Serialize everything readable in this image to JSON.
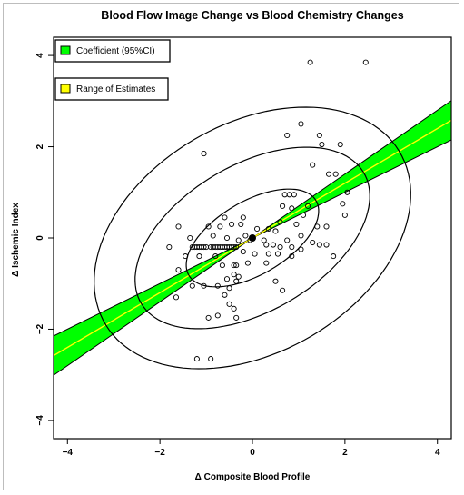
{
  "chart_data": {
    "type": "scatter",
    "title": "Blood Flow Image Change vs Blood Chemistry Changes",
    "xlabel": "Δ Composite Blood Profile",
    "ylabel": "Δ Ischemic Index",
    "xlim": [
      -4.3,
      4.3
    ],
    "ylim": [
      -4.4,
      4.4
    ],
    "xticks": [
      -4,
      -2,
      0,
      2,
      4
    ],
    "yticks": [
      -4,
      -2,
      0,
      2,
      4
    ],
    "legend": [
      {
        "label": "Coefficient (95%CI)",
        "color": "#00ff00"
      },
      {
        "label": "Range of Estimates",
        "color": "#ffff00"
      }
    ],
    "legend_position": "top-left",
    "grid": false,
    "center_point": {
      "x": 0,
      "y": 0
    },
    "regression": {
      "slope": 0.6,
      "intercept": 0,
      "ci_slope_low": 0.5,
      "ci_slope_high": 0.7,
      "line_color": "#ffff00",
      "band_color": "#00ff00"
    },
    "ellipses": [
      {
        "cx": 0,
        "cy": 0,
        "rx": 1.6,
        "ry": 0.8,
        "angle_deg": 31
      },
      {
        "cx": 0,
        "cy": 0,
        "rx": 2.8,
        "ry": 1.6,
        "angle_deg": 31
      },
      {
        "cx": 0,
        "cy": 0,
        "rx": 3.7,
        "ry": 2.5,
        "angle_deg": 31
      }
    ],
    "points": [
      [
        1.25,
        3.85
      ],
      [
        2.45,
        3.85
      ],
      [
        1.05,
        2.5
      ],
      [
        1.45,
        2.25
      ],
      [
        0.75,
        2.25
      ],
      [
        1.9,
        2.05
      ],
      [
        1.5,
        2.05
      ],
      [
        -1.05,
        1.85
      ],
      [
        1.3,
        1.6
      ],
      [
        1.65,
        1.4
      ],
      [
        1.8,
        1.4
      ],
      [
        2.05,
        1.0
      ],
      [
        1.95,
        0.75
      ],
      [
        0.7,
        0.95
      ],
      [
        0.8,
        0.95
      ],
      [
        0.9,
        0.95
      ],
      [
        0.65,
        0.7
      ],
      [
        0.85,
        0.65
      ],
      [
        1.2,
        0.7
      ],
      [
        2.0,
        0.5
      ],
      [
        -0.2,
        0.45
      ],
      [
        -0.6,
        0.45
      ],
      [
        -0.25,
        0.3
      ],
      [
        -0.45,
        0.3
      ],
      [
        -0.7,
        0.25
      ],
      [
        -0.95,
        0.25
      ],
      [
        -1.6,
        0.25
      ],
      [
        0.6,
        0.35
      ],
      [
        0.95,
        0.3
      ],
      [
        1.1,
        0.5
      ],
      [
        1.4,
        0.25
      ],
      [
        1.6,
        0.25
      ],
      [
        0.1,
        0.2
      ],
      [
        0.35,
        0.2
      ],
      [
        0.5,
        0.15
      ],
      [
        -0.15,
        0.05
      ],
      [
        -0.55,
        0.0
      ],
      [
        -0.85,
        0.05
      ],
      [
        -1.35,
        0.0
      ],
      [
        -0.3,
        -0.05
      ],
      [
        -0.05,
        -0.05
      ],
      [
        0.25,
        -0.05
      ],
      [
        0.75,
        -0.05
      ],
      [
        1.05,
        0.05
      ],
      [
        1.3,
        -0.1
      ],
      [
        -1.8,
        -0.2
      ],
      [
        -1.3,
        -0.2
      ],
      [
        -1.25,
        -0.2
      ],
      [
        -1.2,
        -0.2
      ],
      [
        -1.15,
        -0.2
      ],
      [
        -1.1,
        -0.2
      ],
      [
        -1.05,
        -0.2
      ],
      [
        -1.0,
        -0.2
      ],
      [
        -0.9,
        -0.2
      ],
      [
        -0.85,
        -0.2
      ],
      [
        -0.8,
        -0.2
      ],
      [
        -0.75,
        -0.2
      ],
      [
        -0.7,
        -0.2
      ],
      [
        -0.65,
        -0.2
      ],
      [
        -0.6,
        -0.2
      ],
      [
        -0.55,
        -0.2
      ],
      [
        -0.5,
        -0.2
      ],
      [
        -0.45,
        -0.2
      ],
      [
        -0.4,
        -0.2
      ],
      [
        -0.35,
        -0.2
      ],
      [
        0.3,
        -0.15
      ],
      [
        0.45,
        -0.15
      ],
      [
        0.6,
        -0.2
      ],
      [
        0.85,
        -0.2
      ],
      [
        1.45,
        -0.15
      ],
      [
        1.6,
        -0.15
      ],
      [
        1.05,
        -0.25
      ],
      [
        -1.45,
        -0.4
      ],
      [
        -1.15,
        -0.4
      ],
      [
        -0.8,
        -0.4
      ],
      [
        -0.2,
        -0.3
      ],
      [
        0.05,
        -0.35
      ],
      [
        0.35,
        -0.35
      ],
      [
        0.55,
        -0.35
      ],
      [
        0.85,
        -0.4
      ],
      [
        1.75,
        -0.4
      ],
      [
        -0.65,
        -0.6
      ],
      [
        -0.4,
        -0.6
      ],
      [
        -0.35,
        -0.6
      ],
      [
        -0.1,
        -0.55
      ],
      [
        0.3,
        -0.55
      ],
      [
        -0.4,
        -0.8
      ],
      [
        -0.3,
        -0.85
      ],
      [
        -0.35,
        -0.95
      ],
      [
        -0.55,
        -0.9
      ],
      [
        -1.6,
        -0.7
      ],
      [
        -1.65,
        -1.3
      ],
      [
        -1.3,
        -1.05
      ],
      [
        -1.05,
        -1.05
      ],
      [
        -0.75,
        -1.05
      ],
      [
        -0.5,
        -1.1
      ],
      [
        0.5,
        -0.95
      ],
      [
        0.65,
        -1.15
      ],
      [
        -0.6,
        -1.25
      ],
      [
        -0.5,
        -1.45
      ],
      [
        -0.4,
        -1.55
      ],
      [
        -0.75,
        -1.7
      ],
      [
        -0.95,
        -1.75
      ],
      [
        -0.35,
        -1.75
      ],
      [
        -1.2,
        -2.65
      ],
      [
        -0.9,
        -2.65
      ]
    ]
  }
}
